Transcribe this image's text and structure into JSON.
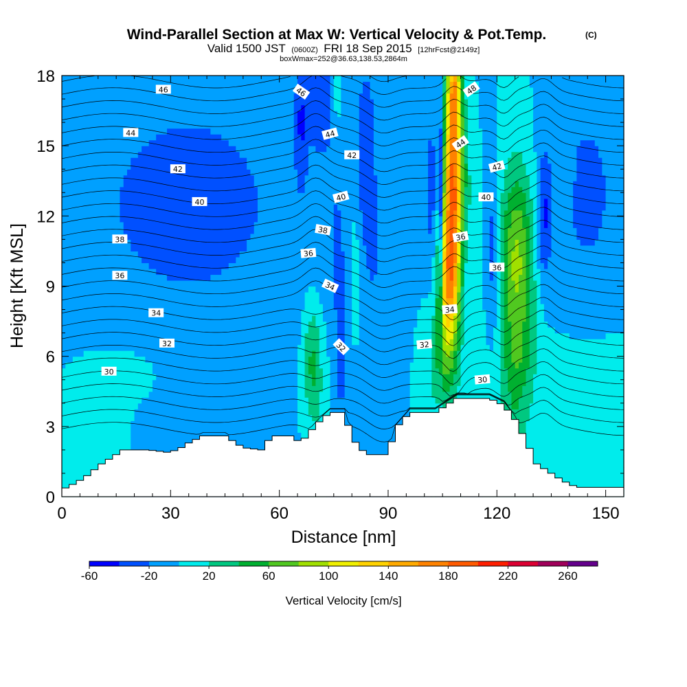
{
  "title": {
    "main": "Wind-Parallel Section at Max W: Vertical Velocity & Pot.Temp.",
    "main_mark": "(C)",
    "valid_prefix": "Valid 1500 JST",
    "valid_utc": "(0600Z)",
    "valid_date": "FRI 18 Sep 2015",
    "forecast": "[12hrFcst@2149z]",
    "box": "boxWmax=252@36.63,138.53,2864m"
  },
  "chart_data": {
    "type": "heatmap",
    "xlabel": "Distance [nm]",
    "ylabel": "Height [Kft MSL]",
    "xlim": [
      0,
      155
    ],
    "ylim": [
      0,
      18
    ],
    "x_ticks": [
      "0",
      "30",
      "60",
      "90",
      "120",
      "150"
    ],
    "y_ticks": [
      "0",
      "3",
      "6",
      "9",
      "12",
      "15",
      "18"
    ],
    "background_velocity_cms": 0,
    "colorbar": {
      "title": "Vertical Velocity [cm/s]",
      "levels": [
        -60,
        -40,
        -20,
        0,
        20,
        40,
        60,
        80,
        100,
        120,
        140,
        160,
        180,
        200,
        220,
        240,
        260,
        280
      ],
      "colors": [
        "#0000ff",
        "#0050ff",
        "#00a0ff",
        "#00ecec",
        "#00c880",
        "#00b030",
        "#50c820",
        "#a0e000",
        "#f0f000",
        "#ffd200",
        "#ffaa00",
        "#ff8200",
        "#ff5a00",
        "#ff1e00",
        "#dc0032",
        "#a0005a",
        "#64008c"
      ],
      "labels": [
        "-60",
        "-20",
        "20",
        "60",
        "100",
        "140",
        "180",
        "220",
        "260"
      ]
    },
    "velocity_features": [
      {
        "x": 35,
        "y": 12.5,
        "sx": 40,
        "sy": 7,
        "w": -25
      },
      {
        "x": 8,
        "y": 3.5,
        "sx": 10,
        "sy": 3,
        "w": 10
      },
      {
        "x": 20,
        "y": 5.5,
        "sx": 12,
        "sy": 1.5,
        "w": 10
      },
      {
        "x": 145,
        "y": 13,
        "sx": 10,
        "sy": 5,
        "w": -25
      },
      {
        "x": 145,
        "y": 4,
        "sx": 12,
        "sy": 3.5,
        "w": 10
      },
      {
        "x": 69,
        "y": 5.8,
        "sx": 2.6,
        "sy": 2.6,
        "w": 45
      },
      {
        "x": 71,
        "y": 4,
        "sx": 2.5,
        "sy": 2.5,
        "w": 10
      },
      {
        "x": 72,
        "y": 17.5,
        "sx": 5,
        "sy": 3,
        "w": -25
      },
      {
        "x": 66,
        "y": 16,
        "sx": 1.5,
        "sy": 2.5,
        "w": -30
      },
      {
        "x": 76,
        "y": 17.3,
        "sx": 1.4,
        "sy": 1.2,
        "w": 35
      },
      {
        "x": 77,
        "y": 6.5,
        "sx": 1.3,
        "sy": 3,
        "w": -35
      },
      {
        "x": 76,
        "y": 10.5,
        "sx": 1.5,
        "sy": 2.5,
        "w": -20
      },
      {
        "x": 81,
        "y": 10,
        "sx": 1.5,
        "sy": 3,
        "w": 15
      },
      {
        "x": 84,
        "y": 14.5,
        "sx": 2.5,
        "sy": 4,
        "w": -35
      },
      {
        "x": 86,
        "y": 11,
        "sx": 1.5,
        "sy": 2,
        "w": -25
      },
      {
        "x": 102,
        "y": 13,
        "sx": 1.5,
        "sy": 4,
        "w": -30
      },
      {
        "x": 105,
        "y": 5.5,
        "sx": 4.5,
        "sy": 2.2,
        "w": 35
      },
      {
        "x": 106.5,
        "y": 9,
        "sx": 3,
        "sy": 3,
        "w": 120
      },
      {
        "x": 107.8,
        "y": 13.5,
        "sx": 2.4,
        "sy": 4.5,
        "w": 180
      },
      {
        "x": 108.3,
        "y": 17.5,
        "sx": 1.8,
        "sy": 1.8,
        "w": 90
      },
      {
        "x": 104.5,
        "y": 12,
        "sx": 0.7,
        "sy": 5,
        "w": -70
      },
      {
        "x": 119,
        "y": 10.5,
        "sx": 1.5,
        "sy": 3.5,
        "w": -35
      },
      {
        "x": 125.5,
        "y": 10,
        "sx": 4.5,
        "sy": 4,
        "w": 85
      },
      {
        "x": 125.5,
        "y": 5.5,
        "sx": 5,
        "sy": 2.2,
        "w": 35
      },
      {
        "x": 124,
        "y": 2.8,
        "sx": 4,
        "sy": 1.3,
        "w": 25
      },
      {
        "x": 133,
        "y": 12,
        "sx": 2,
        "sy": 2.8,
        "w": -40
      },
      {
        "x": 140,
        "y": 14,
        "sx": 1,
        "sy": 1.2,
        "w": 22
      },
      {
        "x": 111,
        "y": 14,
        "sx": 2,
        "sy": 3,
        "w": 25
      },
      {
        "x": 114,
        "y": 12,
        "sx": 1.5,
        "sy": 2,
        "w": 15
      }
    ],
    "terrain_height_kft": [
      [
        0,
        0.3
      ],
      [
        4,
        0.6
      ],
      [
        8,
        1.0
      ],
      [
        10,
        1.3
      ],
      [
        14,
        1.7
      ],
      [
        17,
        2.0
      ],
      [
        24,
        2.0
      ],
      [
        29,
        1.9
      ],
      [
        32,
        2.0
      ],
      [
        35,
        2.3
      ],
      [
        39,
        2.6
      ],
      [
        45,
        2.6
      ],
      [
        50,
        2.1
      ],
      [
        55,
        2.0
      ],
      [
        58,
        2.6
      ],
      [
        63,
        2.6
      ],
      [
        66,
        2.3
      ],
      [
        68,
        2.7
      ],
      [
        71,
        3.2
      ],
      [
        74,
        3.6
      ],
      [
        78,
        3.6
      ],
      [
        80,
        2.5
      ],
      [
        84,
        1.8
      ],
      [
        90,
        1.8
      ],
      [
        92,
        2.9
      ],
      [
        96,
        3.6
      ],
      [
        103,
        3.6
      ],
      [
        106,
        3.9
      ],
      [
        109,
        4.2
      ],
      [
        118,
        4.2
      ],
      [
        122,
        3.9
      ],
      [
        125,
        3.3
      ],
      [
        128,
        2.4
      ],
      [
        131,
        1.4
      ],
      [
        135,
        1.0
      ],
      [
        138,
        0.7
      ],
      [
        142,
        0.4
      ],
      [
        155,
        0.4
      ]
    ],
    "isentropes": [
      {
        "value": 30,
        "z": 5.35,
        "label_x": 13
      },
      {
        "value": 32,
        "z": 6.55,
        "label_x": 29
      },
      {
        "value": 34,
        "z": 7.85,
        "label_x": 26
      },
      {
        "value": 36,
        "z": 9.45,
        "label_x": 16
      },
      {
        "value": 38,
        "z": 11.0,
        "label_x": 16
      },
      {
        "value": 40,
        "z": 12.6,
        "label_x": 38
      },
      {
        "value": 42,
        "z": 14.0,
        "label_x": 32
      },
      {
        "value": 44,
        "z": 15.55,
        "label_x": 19
      },
      {
        "value": 46,
        "z": 17.4,
        "label_x": 28
      }
    ],
    "contour_labels": [
      "30",
      "32",
      "34",
      "36",
      "38",
      "40",
      "42",
      "44",
      "46",
      "48"
    ],
    "extra_labels": [
      {
        "text": "46",
        "x": 66,
        "y": 17.3,
        "rot": 35
      },
      {
        "text": "44",
        "x": 74,
        "y": 15.5,
        "rot": -15
      },
      {
        "text": "42",
        "x": 80,
        "y": 14.6,
        "rot": 0
      },
      {
        "text": "40",
        "x": 77,
        "y": 12.8,
        "rot": -15
      },
      {
        "text": "38",
        "x": 72,
        "y": 11.4,
        "rot": 10
      },
      {
        "text": "36",
        "x": 68,
        "y": 10.4,
        "rot": -5
      },
      {
        "text": "34",
        "x": 74,
        "y": 9.0,
        "rot": 25
      },
      {
        "text": "32",
        "x": 77,
        "y": 6.4,
        "rot": 45
      },
      {
        "text": "32",
        "x": 100,
        "y": 6.5,
        "rot": -5
      },
      {
        "text": "34",
        "x": 107,
        "y": 8.0,
        "rot": -5
      },
      {
        "text": "36",
        "x": 110,
        "y": 11.1,
        "rot": -10
      },
      {
        "text": "36",
        "x": 120,
        "y": 9.8,
        "rot": 0
      },
      {
        "text": "40",
        "x": 117,
        "y": 12.8,
        "rot": 0
      },
      {
        "text": "42",
        "x": 120,
        "y": 14.1,
        "rot": -15
      },
      {
        "text": "44",
        "x": 110,
        "y": 15.1,
        "rot": -35
      },
      {
        "text": "48",
        "x": 113,
        "y": 17.4,
        "rot": -35
      },
      {
        "text": "30",
        "x": 116,
        "y": 5.0,
        "rot": -5
      }
    ]
  }
}
